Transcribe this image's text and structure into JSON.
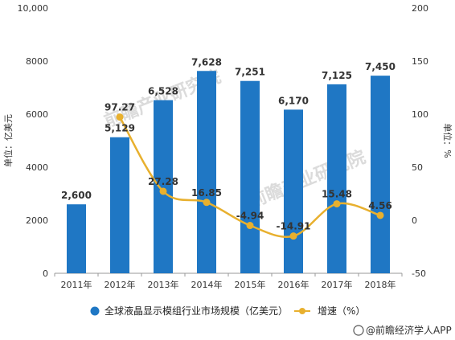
{
  "chart_data": {
    "type": "bar",
    "categories": [
      "2011年",
      "2012年",
      "2013年",
      "2014年",
      "2015年",
      "2016年",
      "2017年",
      "2018年"
    ],
    "series": [
      {
        "name": "全球液晶显示模组行业市场规模（亿美元）",
        "type": "bar",
        "axis": "left",
        "values": [
          2600,
          5129,
          6528,
          7628,
          7251,
          6170,
          7125,
          7450
        ],
        "labels": [
          "2,600",
          "5,129",
          "6,528",
          "7,628",
          "7,251",
          "6,170",
          "7,125",
          "7,450"
        ],
        "color": "#1f77c4"
      },
      {
        "name": "增速（%）",
        "type": "line",
        "axis": "right",
        "values": [
          null,
          97.27,
          27.28,
          16.85,
          -4.94,
          -14.91,
          15.48,
          4.56
        ],
        "labels": [
          "",
          "97.27",
          "27.28",
          "16.85",
          "-4.94",
          "-14.91",
          "15.48",
          "4.56"
        ],
        "color": "#e8b02e"
      }
    ],
    "y_left": {
      "label": "单位：亿美元",
      "min": 0,
      "max": 10000,
      "ticks": [
        "0",
        "2000",
        "4000",
        "6000",
        "8000",
        "10,000"
      ],
      "tick_values": [
        0,
        2000,
        4000,
        6000,
        8000,
        10000
      ]
    },
    "y_right": {
      "label": "单位：%",
      "min": -50,
      "max": 200,
      "ticks": [
        "-50",
        "0",
        "50",
        "100",
        "150",
        "200"
      ],
      "tick_values": [
        -50,
        0,
        50,
        100,
        150,
        200
      ]
    },
    "grid": false,
    "legend_position": "bottom"
  },
  "watermark": "前瞻产业研究院",
  "source": "@前瞻经济学人APP"
}
